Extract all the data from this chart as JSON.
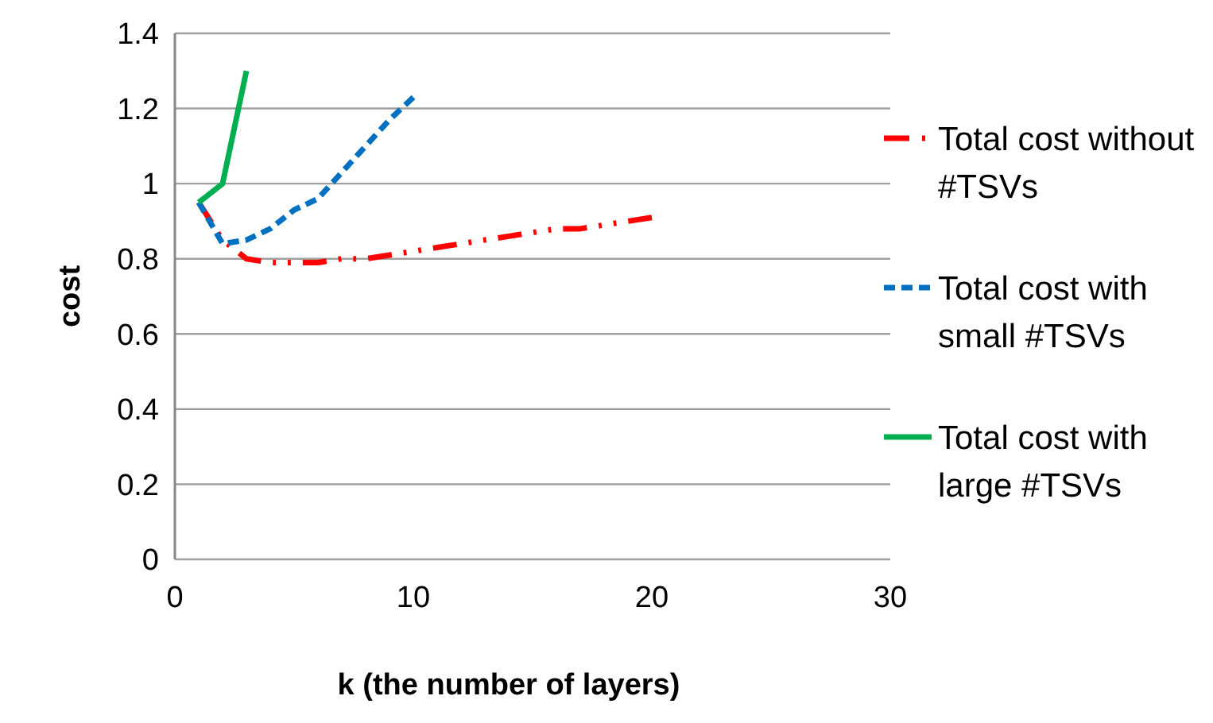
{
  "chart_data": {
    "type": "line",
    "xlabel": "k (the number of layers)",
    "ylabel": "cost",
    "xlim": [
      0,
      30
    ],
    "xticks": [
      0,
      10,
      20,
      30
    ],
    "ylim": [
      0,
      1.4
    ],
    "yticks": [
      0,
      0.2,
      0.4,
      0.6,
      0.8,
      1,
      1.2,
      1.4
    ],
    "grid": "y",
    "legend": "right",
    "marker": "none",
    "series": [
      {
        "name": "Total cost without #TSVs",
        "color": "#ff0000",
        "line_style": "dashdotdot",
        "x": [
          1,
          2,
          3,
          4,
          5,
          6,
          7,
          8,
          9,
          10,
          11,
          12,
          13,
          14,
          15,
          16,
          17,
          18,
          19,
          20
        ],
        "values": [
          0.95,
          0.85,
          0.8,
          0.79,
          0.79,
          0.79,
          0.8,
          0.8,
          0.81,
          0.82,
          0.83,
          0.84,
          0.85,
          0.86,
          0.87,
          0.88,
          0.88,
          0.89,
          0.9,
          0.91
        ]
      },
      {
        "name": "Total cost with small #TSVs",
        "color": "#0070c0",
        "line_style": "dashed",
        "x": [
          1,
          2,
          3,
          4,
          5,
          6,
          7,
          8,
          9,
          10
        ],
        "values": [
          0.95,
          0.84,
          0.85,
          0.88,
          0.93,
          0.96,
          1.03,
          1.1,
          1.17,
          1.23
        ]
      },
      {
        "name": "Total cost with large #TSVs",
        "color": "#00b050",
        "line_style": "solid",
        "x": [
          1,
          2,
          3
        ],
        "values": [
          0.95,
          1.0,
          1.3
        ]
      }
    ]
  }
}
